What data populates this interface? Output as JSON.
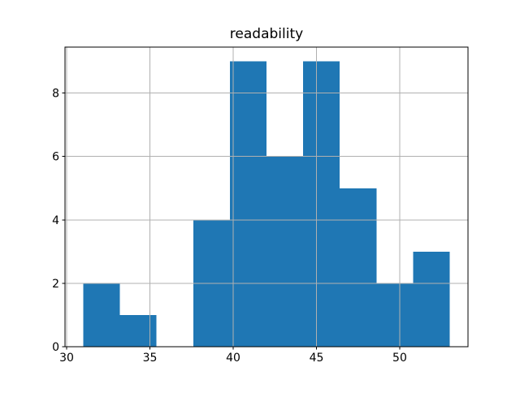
{
  "chart_data": {
    "type": "bar",
    "subtype": "histogram",
    "title": "readability",
    "xlabel": "",
    "ylabel": "",
    "bin_edges": [
      31.0,
      33.2,
      35.4,
      37.6,
      39.8,
      42.0,
      44.2,
      46.4,
      48.6,
      50.8,
      53.0
    ],
    "counts": [
      2,
      1,
      0,
      4,
      9,
      6,
      9,
      5,
      2,
      3
    ],
    "xticks": [
      30,
      35,
      40,
      45,
      50
    ],
    "yticks": [
      0,
      2,
      4,
      6,
      8
    ],
    "xlim": [
      29.9,
      54.1
    ],
    "ylim": [
      0,
      9.45
    ],
    "grid": true,
    "grid_on_top_of_bars": true,
    "legend": false,
    "bar_color": "#1f77b4",
    "grid_color": "#b0b0b0",
    "frame_color": "#000000",
    "background_color": "#ffffff"
  }
}
